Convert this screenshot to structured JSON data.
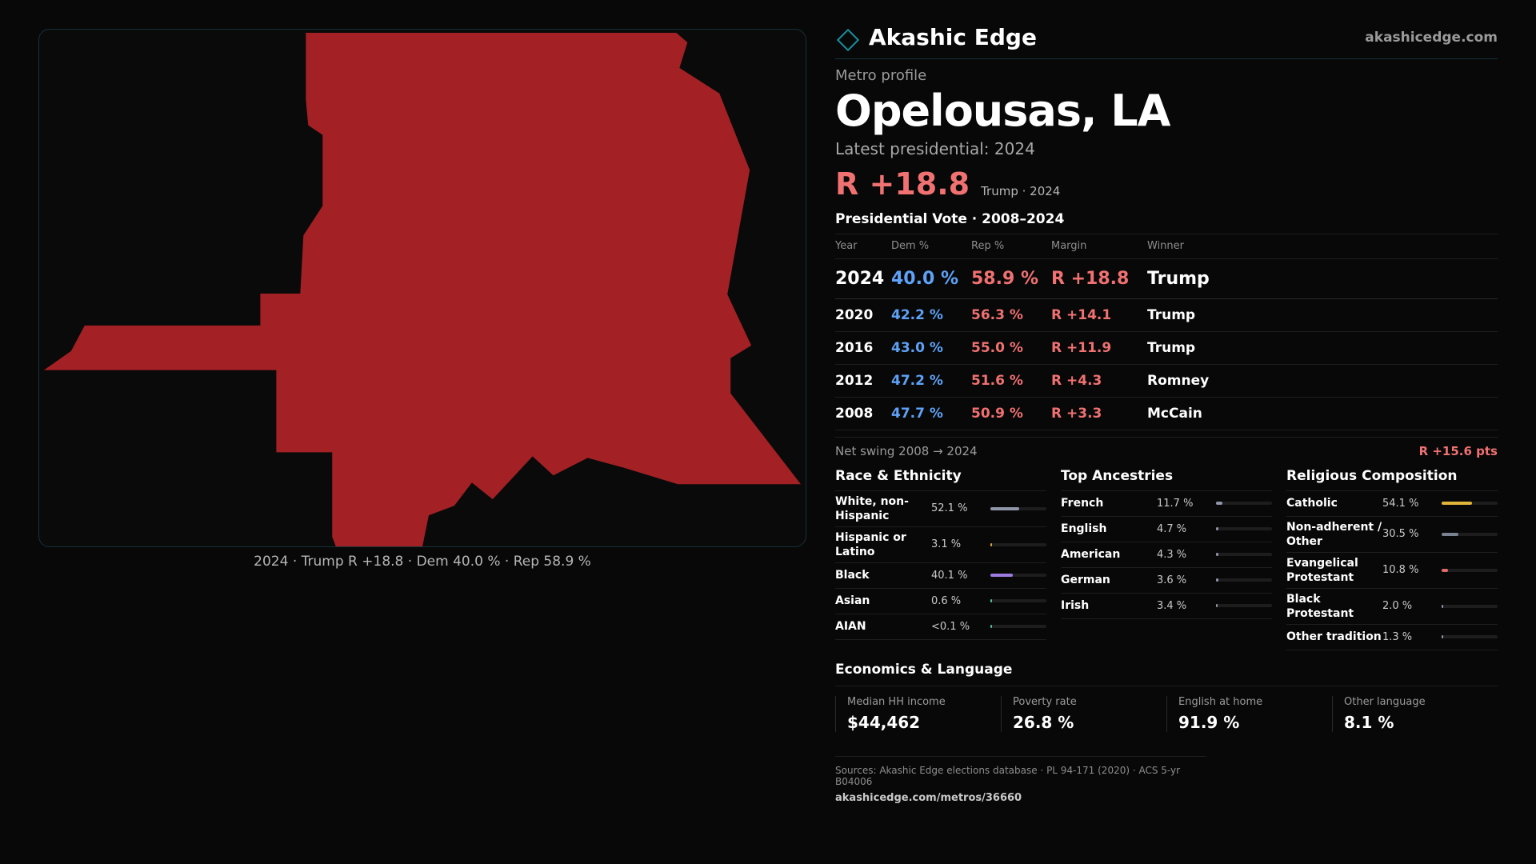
{
  "brand": {
    "name": "Akashic Edge",
    "domain": "akashicedge.com",
    "icon": "diamond-icon",
    "accent_color": "#1a8fa0"
  },
  "profile": {
    "kicker": "Metro profile",
    "title": "Opelousas, LA",
    "latest_label": "Latest presidential: 2024",
    "headline_margin": "R +18.8",
    "headline_sub": "Trump · 2024"
  },
  "map": {
    "caption": "2024 · Trump R +18.8 · Dem 40.0 % · Rep 58.9 %",
    "fill_color": "#a32124"
  },
  "vote_table": {
    "title": "Presidential Vote · 2008–2024",
    "headers": [
      "Year",
      "Dem %",
      "Rep %",
      "Margin",
      "Winner"
    ],
    "rows": [
      {
        "year": "2024",
        "dem": "40.0 %",
        "rep": "58.9 %",
        "margin": "R +18.8",
        "winner": "Trump"
      },
      {
        "year": "2020",
        "dem": "42.2 %",
        "rep": "56.3 %",
        "margin": "R +14.1",
        "winner": "Trump"
      },
      {
        "year": "2016",
        "dem": "43.0 %",
        "rep": "55.0 %",
        "margin": "R +11.9",
        "winner": "Trump"
      },
      {
        "year": "2012",
        "dem": "47.2 %",
        "rep": "51.6 %",
        "margin": "R +4.3",
        "winner": "Romney"
      },
      {
        "year": "2008",
        "dem": "47.7 %",
        "rep": "50.9 %",
        "margin": "R +3.3",
        "winner": "McCain"
      }
    ],
    "dem_color": "#5ea2f7",
    "rep_color": "#f07171"
  },
  "swing": {
    "label": "Net swing 2008 → 2024",
    "value": "R +15.6 pts"
  },
  "race": {
    "title": "Race & Ethnicity",
    "items": [
      {
        "label": "White, non-Hispanic",
        "value": "52.1 %",
        "share": 52.1,
        "color": "#8e96a8"
      },
      {
        "label": "Hispanic or Latino",
        "value": "3.1 %",
        "share": 3.1,
        "color": "#e0a52e"
      },
      {
        "label": "Black",
        "value": "40.1 %",
        "share": 40.1,
        "color": "#9c7be0"
      },
      {
        "label": "Asian",
        "value": "0.6 %",
        "share": 0.6,
        "color": "#4fc2a8"
      },
      {
        "label": "AIAN",
        "value": "<0.1 %",
        "share": 0.05,
        "color": "#4fc2a8"
      }
    ]
  },
  "ancestry": {
    "title": "Top Ancestries",
    "items": [
      {
        "label": "French",
        "value": "11.7 %",
        "share": 11.7,
        "color": "#8e96a8"
      },
      {
        "label": "English",
        "value": "4.7 %",
        "share": 4.7,
        "color": "#8e96a8"
      },
      {
        "label": "American",
        "value": "4.3 %",
        "share": 4.3,
        "color": "#8e96a8"
      },
      {
        "label": "German",
        "value": "3.6 %",
        "share": 3.6,
        "color": "#8e96a8"
      },
      {
        "label": "Irish",
        "value": "3.4 %",
        "share": 3.4,
        "color": "#8e96a8"
      }
    ]
  },
  "religion": {
    "title": "Religious Composition",
    "items": [
      {
        "label": "Catholic",
        "value": "54.1 %",
        "share": 54.1,
        "color": "#e0b53a"
      },
      {
        "label": "Non-adherent / Other",
        "value": "30.5 %",
        "share": 30.5,
        "color": "#7a8190"
      },
      {
        "label": "Evangelical Protestant",
        "value": "10.8 %",
        "share": 10.8,
        "color": "#e06a6a"
      },
      {
        "label": "Black Protestant",
        "value": "2.0 %",
        "share": 2.0,
        "color": "#8e96a8"
      },
      {
        "label": "Other tradition",
        "value": "1.3 %",
        "share": 1.3,
        "color": "#8e96a8"
      }
    ]
  },
  "economics": {
    "title": "Economics & Language",
    "items": [
      {
        "label": "Median HH income",
        "value": "$44,462"
      },
      {
        "label": "Poverty rate",
        "value": "26.8 %"
      },
      {
        "label": "English at home",
        "value": "91.9 %"
      },
      {
        "label": "Other language",
        "value": "8.1 %"
      }
    ]
  },
  "sources": {
    "line": "Sources: Akashic Edge elections database · PL 94-171 (2020) · ACS 5-yr B04006",
    "url": "akashicedge.com/metros/36660"
  }
}
